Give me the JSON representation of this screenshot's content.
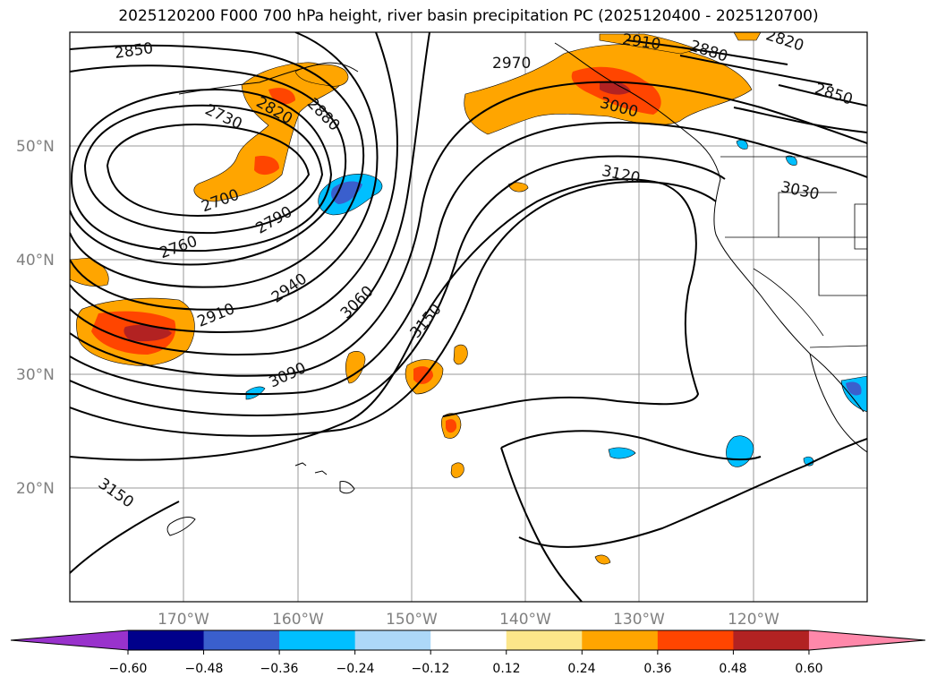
{
  "title": "2025120200 F000 700 hPa height, river basin precipitation PC (2025120400 - 2025120700)",
  "map": {
    "projection": "lat-lon",
    "lon_range": [
      -180,
      -110
    ],
    "lat_range": [
      10,
      60
    ],
    "lat_ticks": [
      {
        "value": 50,
        "label": "50°N"
      },
      {
        "value": 40,
        "label": "40°N"
      },
      {
        "value": 30,
        "label": "30°N"
      },
      {
        "value": 20,
        "label": "20°N"
      }
    ],
    "lon_ticks": [
      {
        "value": -170,
        "label": "170°W"
      },
      {
        "value": -160,
        "label": "160°W"
      },
      {
        "value": -150,
        "label": "150°W"
      },
      {
        "value": -140,
        "label": "140°W"
      },
      {
        "value": -130,
        "label": "130°W"
      },
      {
        "value": -120,
        "label": "120°W"
      }
    ],
    "contour_labels": [
      "2850",
      "2970",
      "2910",
      "2880",
      "2820",
      "2850",
      "2730",
      "2820",
      "2880",
      "3000",
      "2700",
      "2790",
      "3120",
      "3030",
      "2760",
      "2940",
      "3060",
      "3150",
      "2910",
      "3090",
      "3150"
    ]
  },
  "colorbar": {
    "colors": [
      "#9932cc",
      "#00008b",
      "#3a5fcd",
      "#00bfff",
      "#add8f8",
      "#ffffff",
      "#fce68a",
      "#ffa500",
      "#ff4500",
      "#b22222",
      "#ff88aa"
    ],
    "tick_labels": [
      "−0.60",
      "−0.48",
      "−0.36",
      "−0.24",
      "−0.12",
      "0.12",
      "0.24",
      "0.36",
      "0.48",
      "0.60"
    ]
  }
}
